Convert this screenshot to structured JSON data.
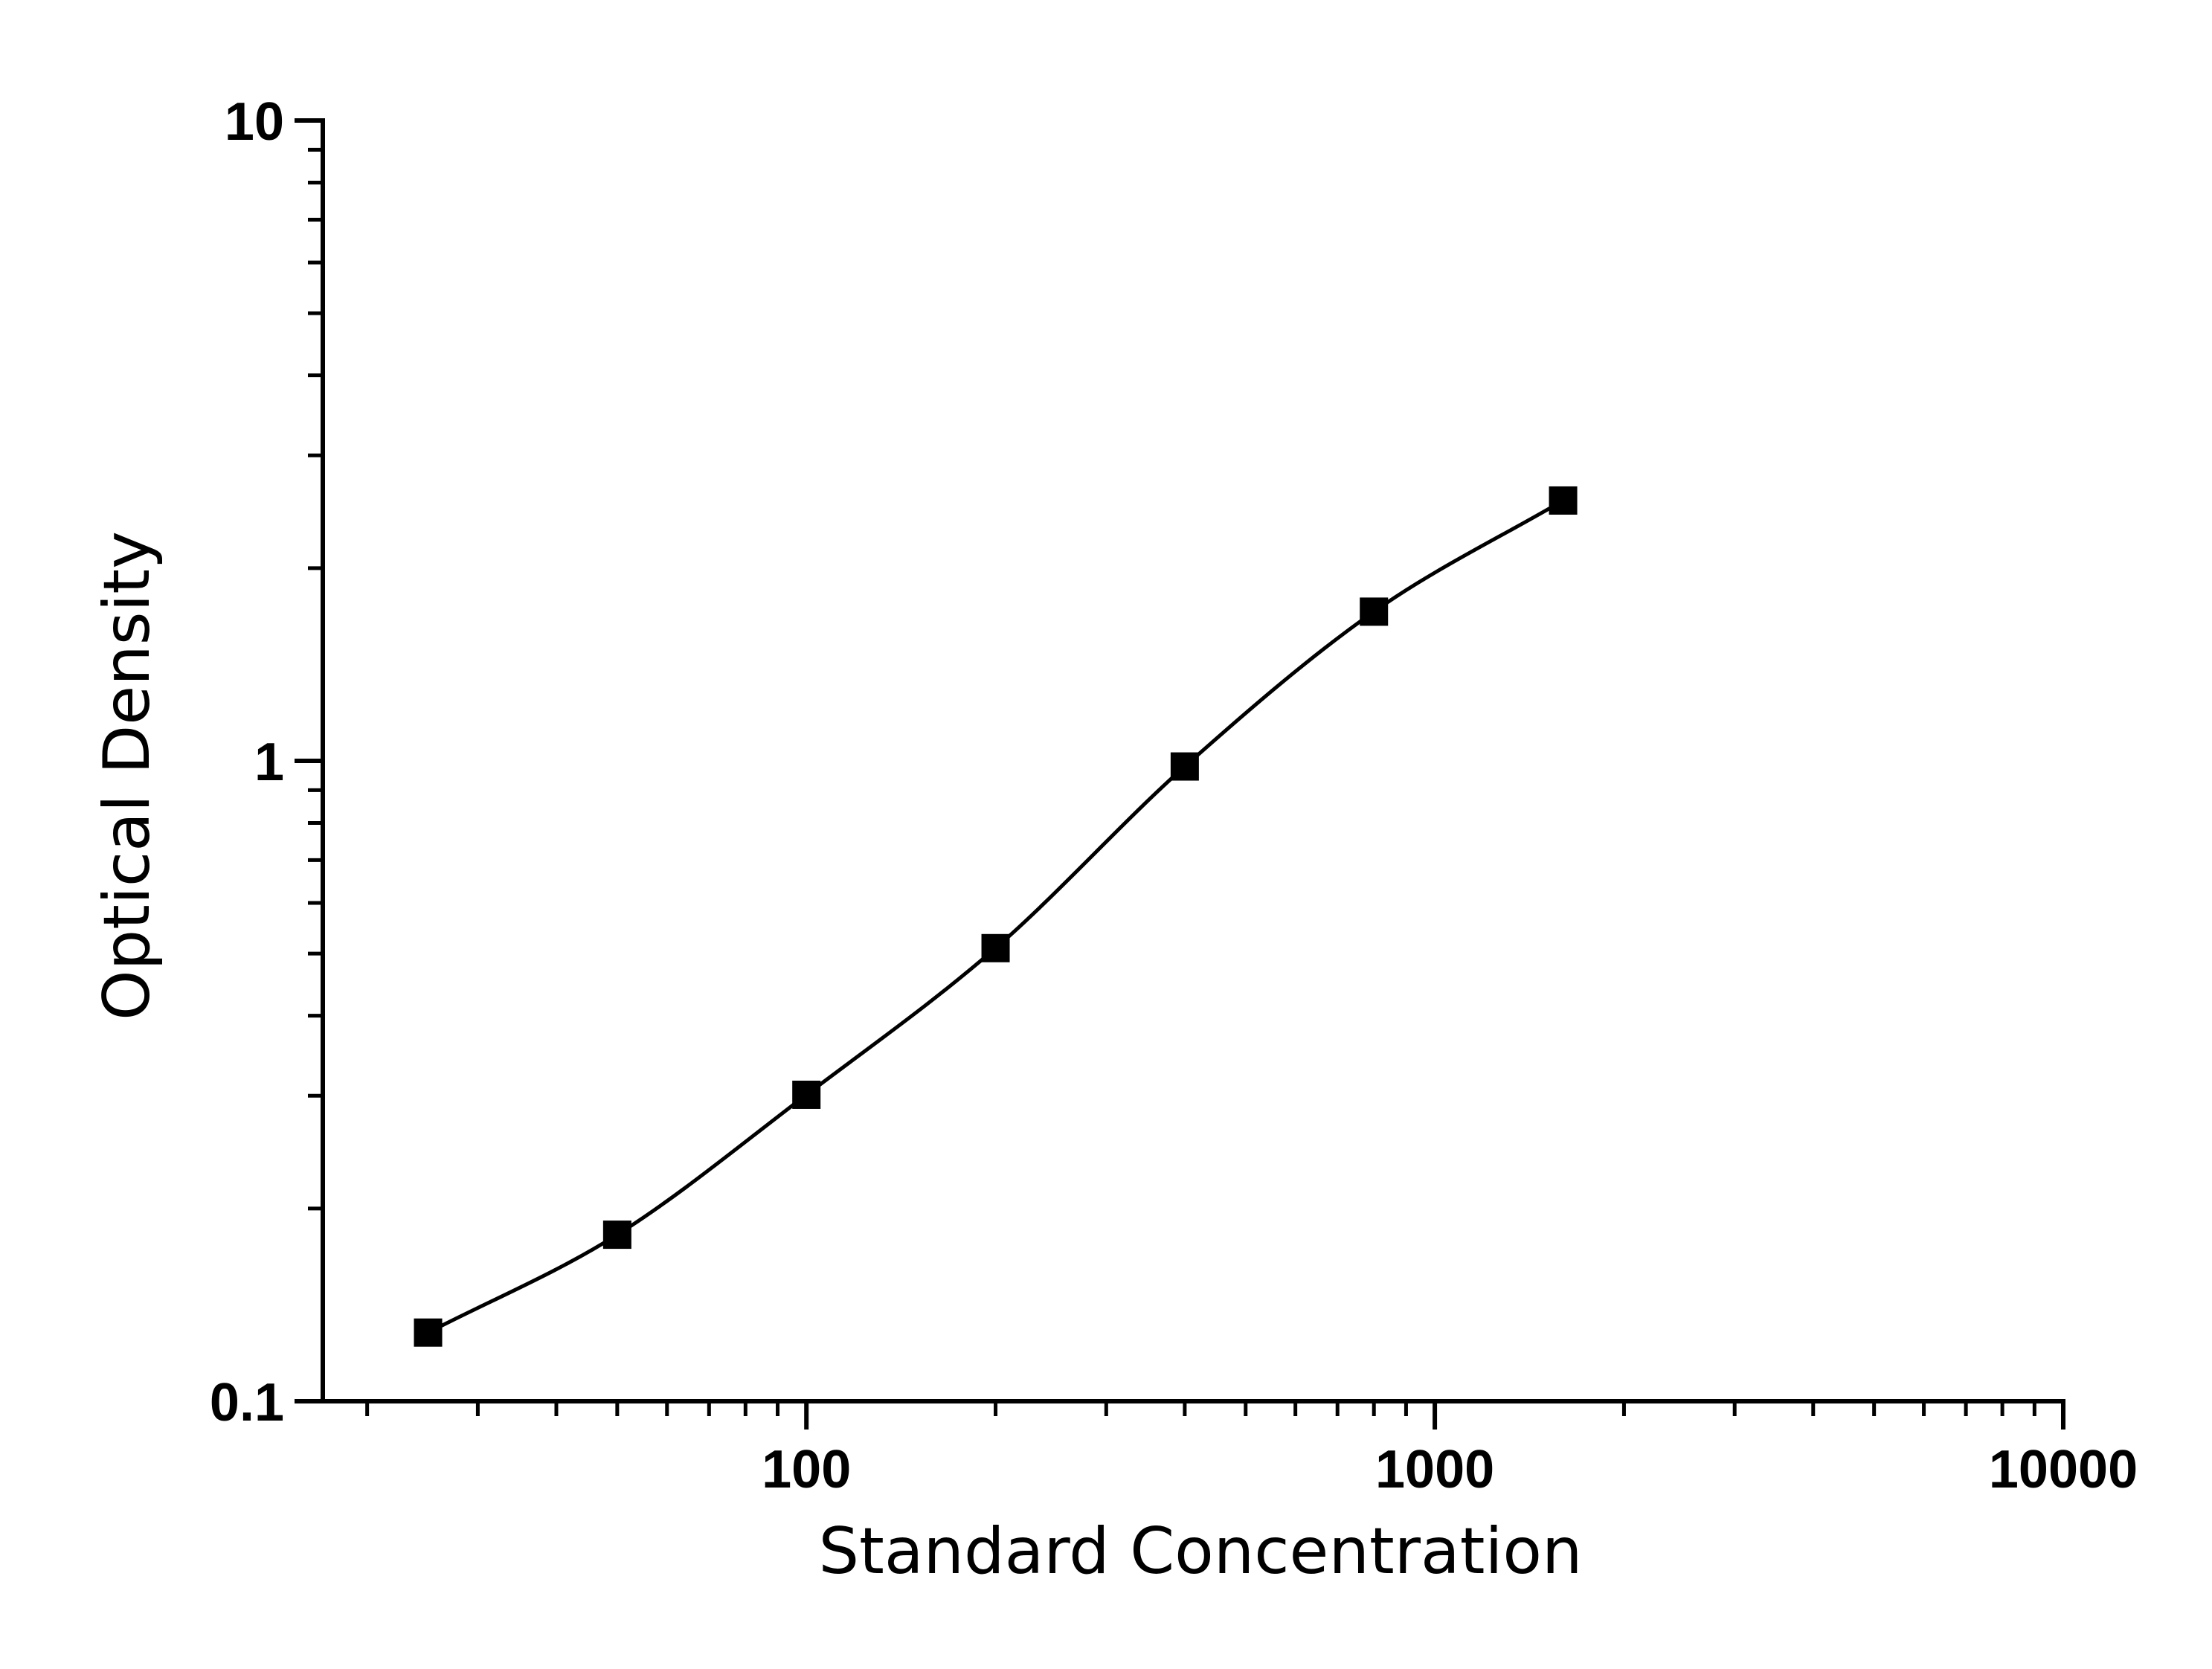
{
  "chart_data": {
    "type": "line",
    "title": "",
    "xlabel": "Standard Concentration",
    "ylabel": "Optical Density",
    "x_scale": "log",
    "y_scale": "log",
    "xlim": [
      17,
      10000
    ],
    "ylim": [
      0.1,
      10
    ],
    "x_ticks": [
      {
        "value": 100,
        "label": "100"
      },
      {
        "value": 1000,
        "label": "1000"
      },
      {
        "value": 10000,
        "label": "10000"
      }
    ],
    "y_ticks": [
      {
        "value": 0.1,
        "label": "0.1"
      },
      {
        "value": 1,
        "label": "1"
      },
      {
        "value": 10,
        "label": "10"
      }
    ],
    "grid": false,
    "legend": "none",
    "marker": "square",
    "color": "#000000",
    "series": [
      {
        "x": [
          25,
          50,
          100,
          200,
          400,
          800,
          1600
        ],
        "y": [
          0.128,
          0.182,
          0.301,
          0.51,
          0.98,
          1.71,
          2.55
        ]
      }
    ]
  }
}
